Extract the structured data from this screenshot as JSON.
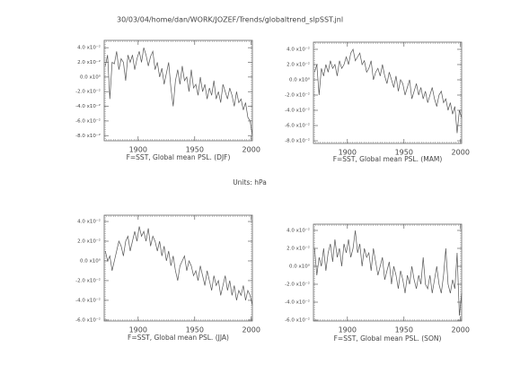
{
  "header": {
    "title": "30/03/04/home/dan/WORK/JOZEF/Trends/globaltrend_slpSST.jnl",
    "units": "Units: hPa"
  },
  "chart_data": [
    {
      "type": "line",
      "title": "F=SST, Global mean PSL. (DJF)",
      "x": [
        1871,
        1873,
        1875,
        1877,
        1879,
        1881,
        1883,
        1885,
        1887,
        1889,
        1891,
        1893,
        1895,
        1897,
        1899,
        1901,
        1903,
        1905,
        1907,
        1909,
        1911,
        1913,
        1915,
        1917,
        1919,
        1921,
        1923,
        1925,
        1927,
        1929,
        1931,
        1933,
        1935,
        1937,
        1939,
        1941,
        1943,
        1945,
        1947,
        1949,
        1951,
        1953,
        1955,
        1957,
        1959,
        1961,
        1963,
        1965,
        1967,
        1969,
        1971,
        1973,
        1975,
        1977,
        1979,
        1981,
        1983,
        1985,
        1987,
        1989,
        1991,
        1993,
        1995,
        1997,
        1999,
        2001
      ],
      "series": [
        {
          "color": "#555555",
          "values": [
            0.015,
            0.03,
            -0.03,
            0.02,
            0.018,
            0.035,
            0.01,
            0.025,
            0.02,
            -0.005,
            0.03,
            0.02,
            0.03,
            0.01,
            0.025,
            0.035,
            0.02,
            0.04,
            0.03,
            0.015,
            0.028,
            0.035,
            0.01,
            0.02,
            0.0,
            0.012,
            -0.01,
            0.005,
            0.02,
            -0.015,
            -0.04,
            -0.005,
            0.01,
            -0.01,
            0.015,
            -0.005,
            0.0,
            -0.02,
            0.01,
            -0.015,
            -0.01,
            -0.025,
            0.0,
            -0.02,
            -0.01,
            -0.03,
            -0.015,
            -0.025,
            -0.005,
            -0.03,
            -0.02,
            -0.035,
            -0.01,
            -0.02,
            -0.03,
            -0.015,
            -0.025,
            -0.04,
            -0.02,
            -0.035,
            -0.03,
            -0.045,
            -0.035,
            -0.055,
            -0.06,
            -0.08
          ]
        }
      ],
      "xlim": [
        1870,
        2001
      ],
      "xticks": [
        1900,
        1950,
        2000
      ],
      "ylim": [
        -0.087,
        0.05
      ],
      "yticks": [
        {
          "value": 0.04,
          "label": "4.0 x10⁻²"
        },
        {
          "value": 0.02,
          "label": "2.0 x10⁻²"
        },
        {
          "value": 0,
          "label": "0.0 x10⁰"
        },
        {
          "value": -0.02,
          "label": "-2.0 x10⁻²"
        },
        {
          "value": -0.04,
          "label": "-4.0 x10⁻²"
        },
        {
          "value": -0.06,
          "label": "-6.0 x10⁻²"
        },
        {
          "value": -0.08,
          "label": "-8.0 x10⁻²"
        }
      ]
    },
    {
      "type": "line",
      "title": "F=SST, Global mean PSL. (MAM)",
      "x": [
        1871,
        1873,
        1875,
        1877,
        1879,
        1881,
        1883,
        1885,
        1887,
        1889,
        1891,
        1893,
        1895,
        1897,
        1899,
        1901,
        1903,
        1905,
        1907,
        1909,
        1911,
        1913,
        1915,
        1917,
        1919,
        1921,
        1923,
        1925,
        1927,
        1929,
        1931,
        1933,
        1935,
        1937,
        1939,
        1941,
        1943,
        1945,
        1947,
        1949,
        1951,
        1953,
        1955,
        1957,
        1959,
        1961,
        1963,
        1965,
        1967,
        1969,
        1971,
        1973,
        1975,
        1977,
        1979,
        1981,
        1983,
        1985,
        1987,
        1989,
        1991,
        1993,
        1995,
        1997,
        1999,
        2001
      ],
      "series": [
        {
          "color": "#555555",
          "values": [
            0.01,
            0.02,
            -0.02,
            0.015,
            0.005,
            0.02,
            0.01,
            0.025,
            0.015,
            0.02,
            0.005,
            0.025,
            0.015,
            0.02,
            0.03,
            0.02,
            0.035,
            0.04,
            0.025,
            0.03,
            0.035,
            0.02,
            0.025,
            0.01,
            0.015,
            0.025,
            0.0,
            0.01,
            0.015,
            0.005,
            0.02,
            0.005,
            -0.005,
            0.01,
            0.0,
            -0.01,
            0.005,
            -0.015,
            0.0,
            -0.005,
            -0.02,
            -0.01,
            0.0,
            -0.025,
            -0.015,
            -0.005,
            -0.02,
            -0.01,
            -0.025,
            -0.015,
            -0.03,
            -0.02,
            -0.01,
            -0.025,
            -0.035,
            -0.02,
            -0.015,
            -0.03,
            -0.025,
            -0.04,
            -0.03,
            -0.045,
            -0.035,
            -0.07,
            -0.04,
            -0.05
          ]
        }
      ],
      "xlim": [
        1870,
        2001
      ],
      "xticks": [
        1900,
        1950,
        2000
      ],
      "ylim": [
        -0.0835,
        0.0494
      ],
      "yticks": [
        {
          "value": 0.04,
          "label": "4.0 x10⁻²"
        },
        {
          "value": 0.02,
          "label": "2.0 x10⁻²"
        },
        {
          "value": 0,
          "label": "0.0 x10⁰"
        },
        {
          "value": -0.02,
          "label": "-2.0 x10⁻²"
        },
        {
          "value": -0.04,
          "label": "-4.0 x10⁻²"
        },
        {
          "value": -0.06,
          "label": "-6.0 x10⁻²"
        },
        {
          "value": -0.08,
          "label": "-8.0 x10⁻²"
        }
      ]
    },
    {
      "type": "line",
      "title": "F=SST, Global mean PSL. (JJA)",
      "x": [
        1871,
        1873,
        1875,
        1877,
        1879,
        1881,
        1883,
        1885,
        1887,
        1889,
        1891,
        1893,
        1895,
        1897,
        1899,
        1901,
        1903,
        1905,
        1907,
        1909,
        1911,
        1913,
        1915,
        1917,
        1919,
        1921,
        1923,
        1925,
        1927,
        1929,
        1931,
        1933,
        1935,
        1937,
        1939,
        1941,
        1943,
        1945,
        1947,
        1949,
        1951,
        1953,
        1955,
        1957,
        1959,
        1961,
        1963,
        1965,
        1967,
        1969,
        1971,
        1973,
        1975,
        1977,
        1979,
        1981,
        1983,
        1985,
        1987,
        1989,
        1991,
        1993,
        1995,
        1997,
        1999,
        2001
      ],
      "series": [
        {
          "color": "#555555",
          "values": [
            0.01,
            0.0,
            0.005,
            -0.01,
            0.0,
            0.01,
            0.02,
            0.015,
            0.005,
            0.02,
            0.025,
            0.01,
            0.02,
            0.03,
            0.02,
            0.035,
            0.025,
            0.03,
            0.02,
            0.033,
            0.015,
            0.025,
            0.02,
            0.01,
            0.02,
            0.005,
            0.015,
            0.0,
            0.01,
            -0.005,
            0.005,
            -0.01,
            -0.02,
            -0.005,
            0.0,
            0.005,
            -0.01,
            0.0,
            -0.005,
            -0.015,
            -0.01,
            -0.02,
            -0.005,
            -0.015,
            -0.025,
            -0.01,
            -0.02,
            -0.03,
            -0.015,
            -0.025,
            -0.02,
            -0.035,
            -0.025,
            -0.015,
            -0.03,
            -0.02,
            -0.035,
            -0.025,
            -0.04,
            -0.03,
            -0.035,
            -0.025,
            -0.04,
            -0.03,
            -0.035,
            -0.045
          ]
        }
      ],
      "xlim": [
        1870,
        2001
      ],
      "xticks": [
        1900,
        1950,
        2000
      ],
      "ylim": [
        -0.061,
        0.0464
      ],
      "yticks": [
        {
          "value": 0.04,
          "label": "4.0 x10⁻²"
        },
        {
          "value": 0.02,
          "label": "2.0 x10⁻²"
        },
        {
          "value": 0,
          "label": "0.0 x10⁰"
        },
        {
          "value": -0.02,
          "label": "-2.0 x10⁻²"
        },
        {
          "value": -0.04,
          "label": "-4.0 x10⁻²"
        },
        {
          "value": -0.06,
          "label": "-6.0 x10⁻²"
        }
      ]
    },
    {
      "type": "line",
      "title": "F=SST, Global mean PSL. (SON)",
      "x": [
        1871,
        1873,
        1875,
        1877,
        1879,
        1881,
        1883,
        1885,
        1887,
        1889,
        1891,
        1893,
        1895,
        1897,
        1899,
        1901,
        1903,
        1905,
        1907,
        1909,
        1911,
        1913,
        1915,
        1917,
        1919,
        1921,
        1923,
        1925,
        1927,
        1929,
        1931,
        1933,
        1935,
        1937,
        1939,
        1941,
        1943,
        1945,
        1947,
        1949,
        1951,
        1953,
        1955,
        1957,
        1959,
        1961,
        1963,
        1965,
        1967,
        1969,
        1971,
        1973,
        1975,
        1977,
        1979,
        1981,
        1983,
        1985,
        1987,
        1989,
        1991,
        1993,
        1995,
        1997,
        1999,
        2001
      ],
      "series": [
        {
          "color": "#555555",
          "values": [
            0.02,
            -0.01,
            0.01,
            0.0,
            0.02,
            -0.005,
            0.015,
            0.025,
            0.005,
            0.03,
            0.01,
            0.02,
            0.0,
            0.025,
            0.015,
            0.03,
            0.01,
            0.02,
            0.04,
            0.015,
            0.025,
            0.0,
            0.02,
            0.01,
            0.015,
            -0.005,
            0.02,
            0.005,
            -0.01,
            0.0,
            0.01,
            -0.015,
            -0.005,
            0.005,
            -0.02,
            0.0,
            -0.01,
            -0.025,
            -0.005,
            -0.015,
            -0.03,
            -0.01,
            -0.02,
            0.0,
            -0.015,
            -0.025,
            -0.01,
            -0.02,
            0.01,
            -0.02,
            -0.025,
            -0.01,
            -0.03,
            -0.015,
            0.0,
            -0.02,
            -0.03,
            -0.01,
            0.02,
            -0.02,
            -0.03,
            -0.015,
            -0.025,
            0.015,
            -0.055,
            -0.03
          ]
        }
      ],
      "xlim": [
        1870,
        2001
      ],
      "xticks": [
        1900,
        1950,
        2000
      ],
      "ylim": [
        -0.061,
        0.047
      ],
      "yticks": [
        {
          "value": 0.04,
          "label": "4.0 x10⁻²"
        },
        {
          "value": 0.02,
          "label": "2.0 x10⁻²"
        },
        {
          "value": 0,
          "label": "0.0 x10⁰"
        },
        {
          "value": -0.02,
          "label": "-2.0 x10⁻²"
        },
        {
          "value": -0.04,
          "label": "-4.0 x10⁻²"
        },
        {
          "value": -0.06,
          "label": "-6.0 x10⁻²"
        }
      ]
    }
  ]
}
